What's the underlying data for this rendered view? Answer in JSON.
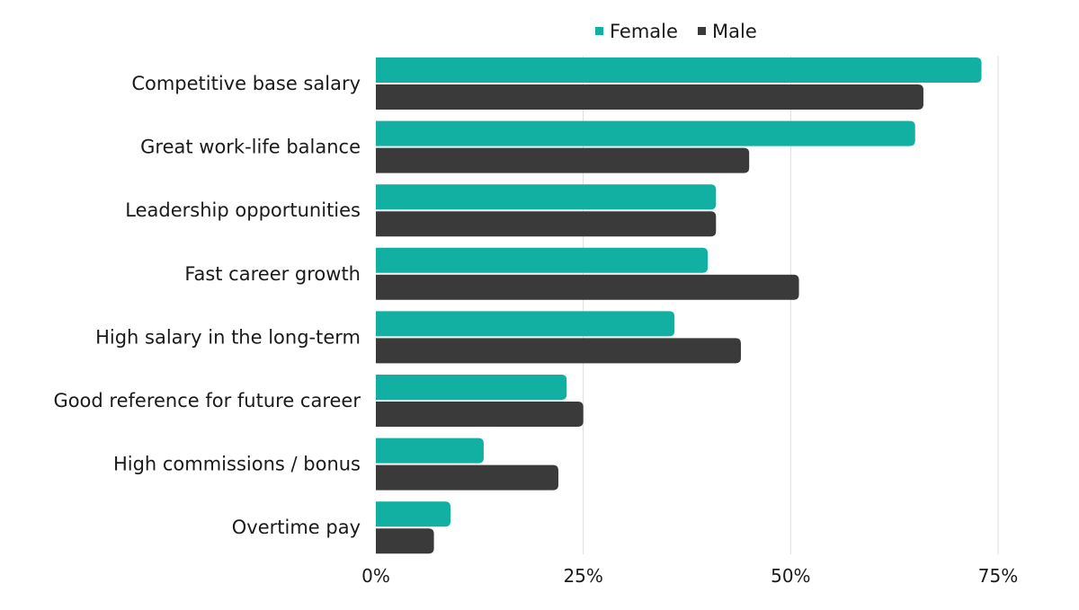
{
  "chart_data": {
    "type": "bar",
    "orientation": "horizontal",
    "categories": [
      "Competitive base salary",
      "Great work-life balance",
      "Leadership opportunities",
      "Fast career growth",
      "High salary in the long-term",
      "Good reference for future career",
      "High commissions / bonus",
      "Overtime pay"
    ],
    "series": [
      {
        "name": "Female",
        "color": "#12b0a2",
        "values": [
          73,
          65,
          41,
          40,
          36,
          23,
          13,
          9
        ]
      },
      {
        "name": "Male",
        "color": "#3a3a3b",
        "values": [
          66,
          45,
          41,
          51,
          44,
          25,
          22,
          7
        ]
      }
    ],
    "x_ticks": [
      "0%",
      "25%",
      "50%",
      "75%"
    ],
    "x_tick_values": [
      0,
      25,
      50,
      75
    ],
    "xlim": [
      0,
      75
    ],
    "grid": true,
    "legend_position": "top"
  }
}
